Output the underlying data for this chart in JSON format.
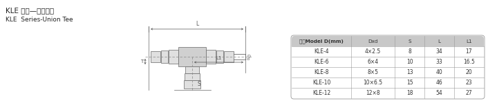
{
  "title_cn": "KLE 系列—快拧三通",
  "title_en": "KLE  Series-Union Tee",
  "table_headers": [
    "型号Model D(mm)",
    "Dxd",
    "S",
    "L",
    "L1"
  ],
  "table_data": [
    [
      "KLE-4",
      "4×2.5",
      "8",
      "34",
      "17"
    ],
    [
      "KLE-6",
      "6×4",
      "10",
      "33",
      "16.5"
    ],
    [
      "KLE-8",
      "8×5",
      "13",
      "40",
      "20"
    ],
    [
      "KLE-10",
      "10×6.5",
      "15",
      "46",
      "23"
    ],
    [
      "KLE-12",
      "12×8",
      "18",
      "54",
      "27"
    ]
  ],
  "header_bg": "#c8c8c8",
  "row_bg": "#ffffff",
  "border_color": "#999999",
  "text_color": "#333333",
  "title_color": "#222222",
  "fig_bg": "#ffffff",
  "line_color": "#666666",
  "dim_color": "#555555"
}
